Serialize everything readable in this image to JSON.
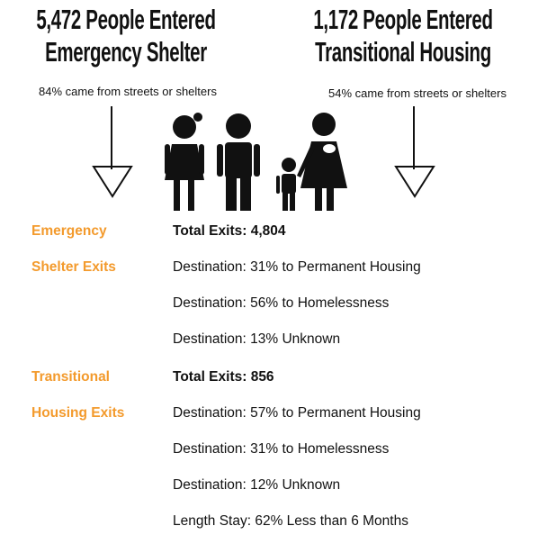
{
  "headings": [
    {
      "lines": [
        "5,472 People Entered",
        "Emergency Shelter"
      ],
      "note": "84% came from streets or shelters"
    },
    {
      "lines": [
        "1,172 People Entered",
        "Transitional Housing"
      ],
      "note": "54% came from streets or shelters"
    }
  ],
  "sections": [
    {
      "label": [
        "Emergency",
        "Shelter Exits"
      ],
      "total": "Total Exits: 4,804",
      "details": [
        "Destination: 31% to Permanent Housing",
        "Destination: 56% to Homelessness",
        "Destination: 13% Unknown"
      ]
    },
    {
      "label": [
        "Transitional",
        "Housing Exits"
      ],
      "total": "Total Exits: 856",
      "details": [
        "Destination: 57% to Permanent Housing",
        "Destination: 31% to Homelessness",
        "Destination: 12% Unknown",
        "Length Stay: 62% Less than 6 Months"
      ]
    }
  ]
}
